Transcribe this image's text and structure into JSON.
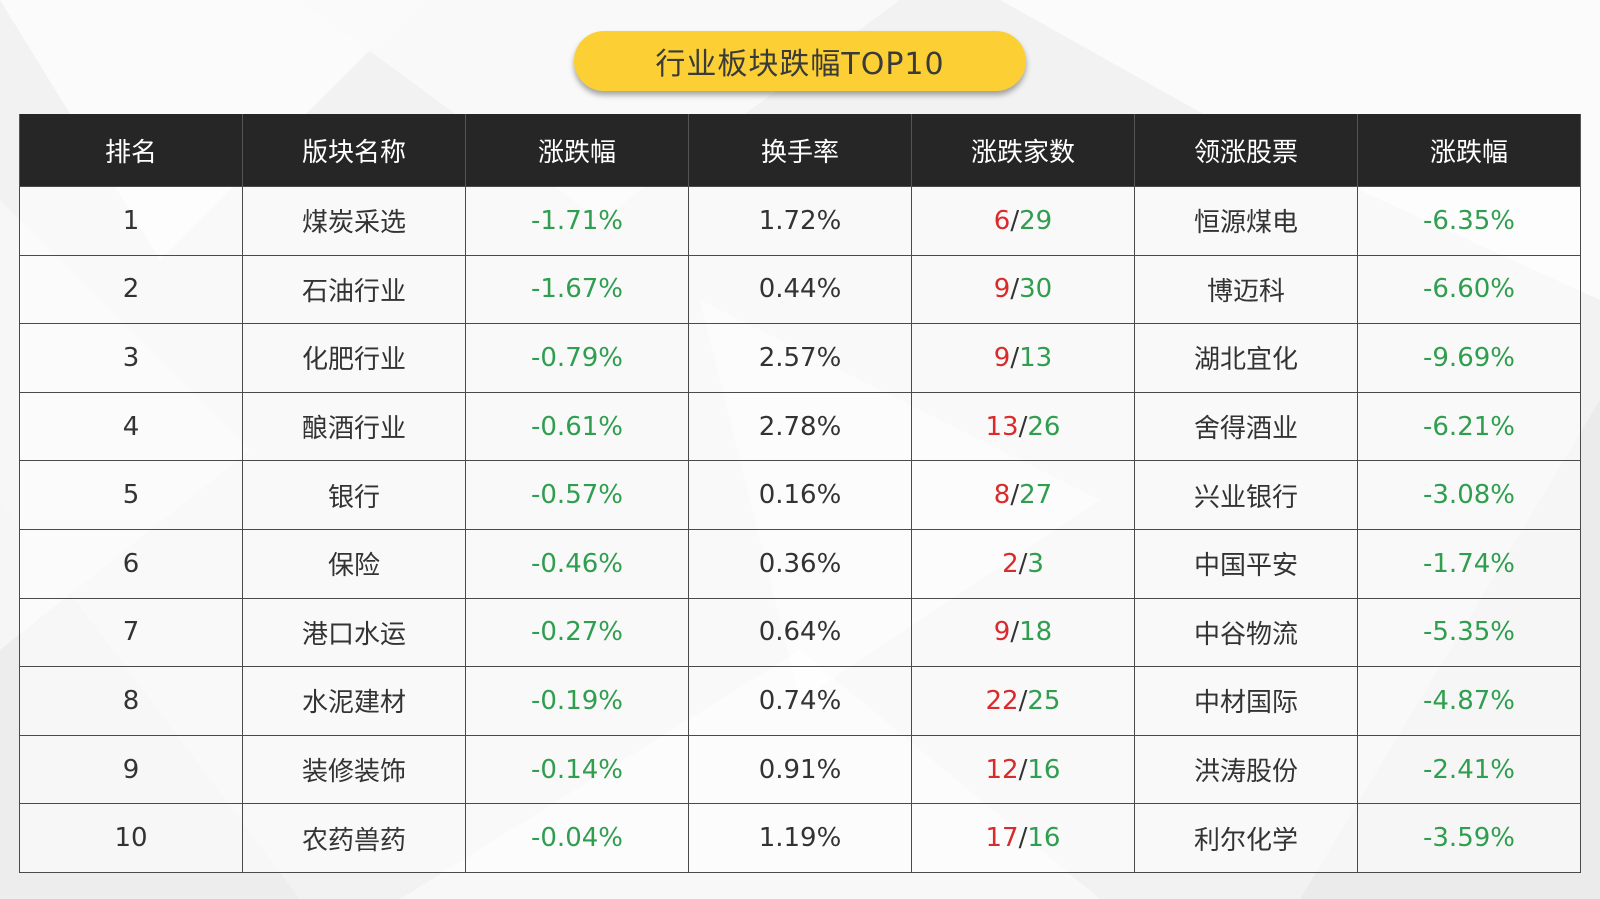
{
  "title": "行业板块跌幅TOP10",
  "colors": {
    "title_bg": "#fcd034",
    "header_bg": "#262626",
    "negative": "#2f9e4f",
    "rising": "#d92b2b"
  },
  "table": {
    "headers": [
      "排名",
      "版块名称",
      "涨跌幅",
      "换手率",
      "涨跌家数",
      "领涨股票",
      "涨跌幅"
    ],
    "rows": [
      {
        "rank": "1",
        "name": "煤炭采选",
        "change": "-1.71%",
        "turnover": "1.72%",
        "up": "6",
        "down": "29",
        "leader": "恒源煤电",
        "leader_change": "-6.35%"
      },
      {
        "rank": "2",
        "name": "石油行业",
        "change": "-1.67%",
        "turnover": "0.44%",
        "up": "9",
        "down": "30",
        "leader": "博迈科",
        "leader_change": "-6.60%"
      },
      {
        "rank": "3",
        "name": "化肥行业",
        "change": "-0.79%",
        "turnover": "2.57%",
        "up": "9",
        "down": "13",
        "leader": "湖北宜化",
        "leader_change": "-9.69%"
      },
      {
        "rank": "4",
        "name": "酿酒行业",
        "change": "-0.61%",
        "turnover": "2.78%",
        "up": "13",
        "down": "26",
        "leader": "舍得酒业",
        "leader_change": "-6.21%"
      },
      {
        "rank": "5",
        "name": "银行",
        "change": "-0.57%",
        "turnover": "0.16%",
        "up": "8",
        "down": "27",
        "leader": "兴业银行",
        "leader_change": "-3.08%"
      },
      {
        "rank": "6",
        "name": "保险",
        "change": "-0.46%",
        "turnover": "0.36%",
        "up": "2",
        "down": "3",
        "leader": "中国平安",
        "leader_change": "-1.74%"
      },
      {
        "rank": "7",
        "name": "港口水运",
        "change": "-0.27%",
        "turnover": "0.64%",
        "up": "9",
        "down": "18",
        "leader": "中谷物流",
        "leader_change": "-5.35%"
      },
      {
        "rank": "8",
        "name": "水泥建材",
        "change": "-0.19%",
        "turnover": "0.74%",
        "up": "22",
        "down": "25",
        "leader": "中材国际",
        "leader_change": "-4.87%"
      },
      {
        "rank": "9",
        "name": "装修装饰",
        "change": "-0.14%",
        "turnover": "0.91%",
        "up": "12",
        "down": "16",
        "leader": "洪涛股份",
        "leader_change": "-2.41%"
      },
      {
        "rank": "10",
        "name": "农药兽药",
        "change": "-0.04%",
        "turnover": "1.19%",
        "up": "17",
        "down": "16",
        "leader": "利尔化学",
        "leader_change": "-3.59%"
      }
    ]
  }
}
